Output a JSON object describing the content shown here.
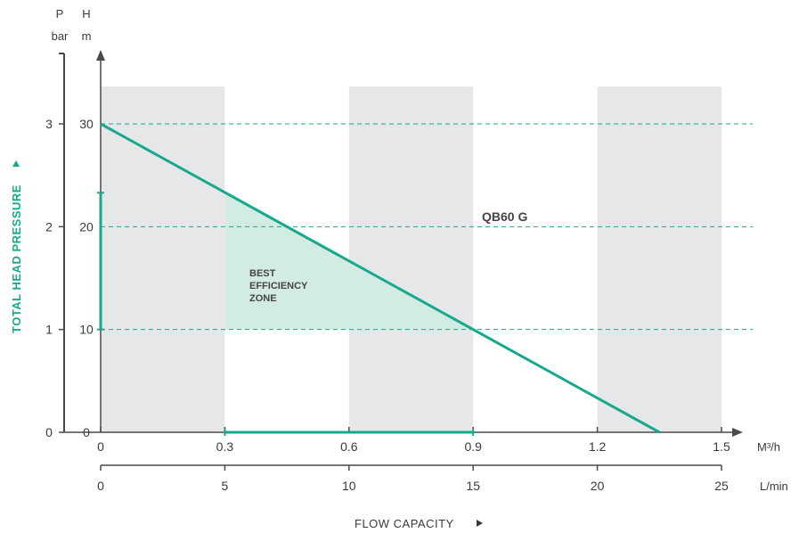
{
  "chart_data": {
    "type": "line",
    "title": "",
    "xlabel": "FLOW CAPACITY",
    "ylabel": "TOTAL HEAD PRESSURE",
    "x_primary": {
      "unit": "M³/h",
      "range": [
        0,
        1.5
      ],
      "ticks": [
        "0",
        "0.3",
        "0.6",
        "0.9",
        "1.2",
        "1.5"
      ]
    },
    "x_secondary": {
      "unit": "L/min",
      "range": [
        0,
        25
      ],
      "ticks": [
        "0",
        "5",
        "10",
        "15",
        "20",
        "25"
      ]
    },
    "y_primary": {
      "unit_symbol": "H",
      "unit": "m",
      "range": [
        0,
        30
      ],
      "ticks": [
        "0",
        "10",
        "20",
        "30"
      ]
    },
    "y_secondary": {
      "unit_symbol": "P",
      "unit": "bar",
      "range": [
        0,
        3
      ],
      "ticks": [
        "0",
        "1",
        "2",
        "3"
      ]
    },
    "grid": "dashed horizontal at H = 10, 20, 30",
    "shaded_bands_x": [
      [
        0,
        0.3
      ],
      [
        0.6,
        0.9
      ],
      [
        1.2,
        1.5
      ]
    ],
    "series": [
      {
        "name": "QB60 G",
        "x": [
          0,
          1.35
        ],
        "y": [
          30,
          0
        ]
      }
    ],
    "best_efficiency_zone": {
      "label": [
        "BEST",
        "EFFICIENCY",
        "ZONE"
      ],
      "x_range": [
        0.3,
        0.9
      ],
      "y_range": [
        10,
        23.3
      ]
    },
    "colors": {
      "accent": "#17a98c",
      "zone_fill": "#d3ece3",
      "band_fill": "#e6e7e8",
      "axis": "#4a4a4a",
      "text": "#3a3a3a"
    }
  }
}
